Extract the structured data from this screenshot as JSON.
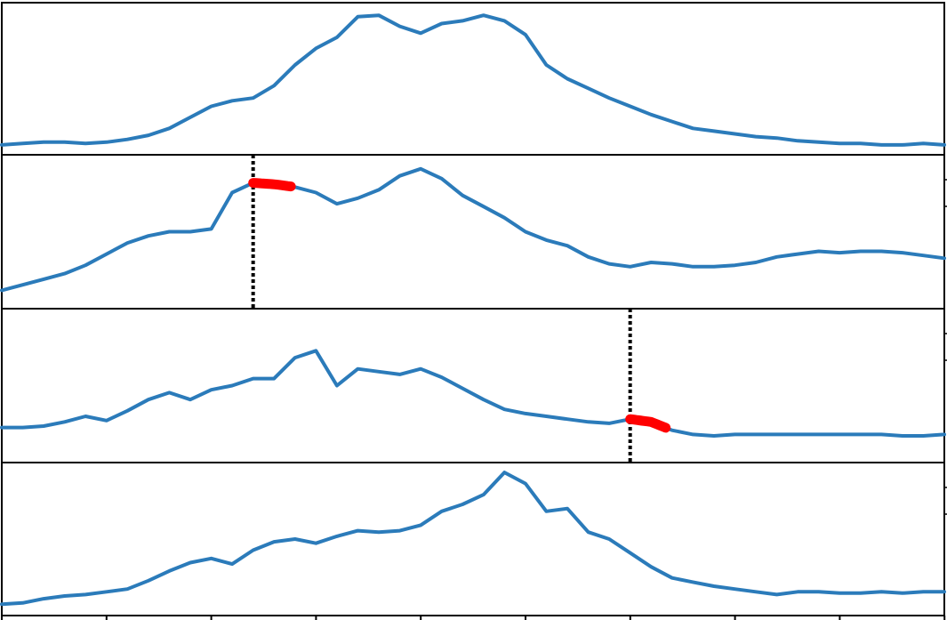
{
  "chart_data": [
    {
      "type": "line",
      "x": [
        0,
        1,
        2,
        3,
        4,
        5,
        6,
        7,
        8,
        9,
        10,
        11,
        12,
        13,
        14,
        15,
        16,
        17,
        18,
        19,
        20,
        21,
        22,
        23,
        24,
        25,
        26,
        27,
        28,
        29,
        30,
        31,
        32,
        33,
        34,
        35,
        36,
        37,
        38,
        39,
        40,
        41,
        42,
        43,
        44,
        45
      ],
      "series": [
        {
          "values": [
            0.02,
            0.03,
            0.04,
            0.04,
            0.03,
            0.04,
            0.06,
            0.09,
            0.14,
            0.22,
            0.3,
            0.34,
            0.36,
            0.45,
            0.6,
            0.72,
            0.8,
            0.95,
            0.96,
            0.88,
            0.83,
            0.9,
            0.92,
            0.96,
            0.92,
            0.82,
            0.6,
            0.5,
            0.43,
            0.36,
            0.3,
            0.24,
            0.19,
            0.14,
            0.12,
            0.1,
            0.08,
            0.07,
            0.05,
            0.04,
            0.03,
            0.03,
            0.02,
            0.02,
            0.03,
            0.02
          ],
          "color": "#2b7bba"
        }
      ],
      "ylim": [
        0,
        1
      ],
      "grid": false
    },
    {
      "type": "line",
      "x": [
        0,
        1,
        2,
        3,
        4,
        5,
        6,
        7,
        8,
        9,
        10,
        11,
        12,
        13,
        14,
        15,
        16,
        17,
        18,
        19,
        20,
        21,
        22,
        23,
        24,
        25,
        26,
        27,
        28,
        29,
        30,
        31,
        32,
        33,
        34,
        35,
        36,
        37,
        38,
        39,
        40,
        41,
        42,
        43,
        44,
        45
      ],
      "series": [
        {
          "values": [
            0.08,
            0.12,
            0.16,
            0.2,
            0.26,
            0.34,
            0.42,
            0.47,
            0.5,
            0.5,
            0.52,
            0.78,
            0.85,
            0.84,
            0.82,
            0.78,
            0.7,
            0.74,
            0.8,
            0.9,
            0.95,
            0.88,
            0.76,
            0.68,
            0.6,
            0.5,
            0.44,
            0.4,
            0.32,
            0.27,
            0.25,
            0.28,
            0.27,
            0.25,
            0.25,
            0.26,
            0.28,
            0.32,
            0.34,
            0.36,
            0.35,
            0.36,
            0.36,
            0.35,
            0.33,
            0.31
          ],
          "color": "#2b7bba"
        }
      ],
      "highlight": {
        "from_x": 12,
        "to_x": 13.8,
        "color": "#ff0000"
      },
      "marker_x": 12,
      "ylim": [
        0,
        1
      ],
      "grid": false
    },
    {
      "type": "line",
      "x": [
        0,
        1,
        2,
        3,
        4,
        5,
        6,
        7,
        8,
        9,
        10,
        11,
        12,
        13,
        14,
        15,
        16,
        17,
        18,
        19,
        20,
        21,
        22,
        23,
        24,
        25,
        26,
        27,
        28,
        29,
        30,
        31,
        32,
        33,
        34,
        35,
        36,
        37,
        38,
        39,
        40,
        41,
        42,
        43,
        44,
        45
      ],
      "series": [
        {
          "values": [
            0.2,
            0.2,
            0.21,
            0.24,
            0.28,
            0.25,
            0.32,
            0.4,
            0.45,
            0.4,
            0.47,
            0.5,
            0.55,
            0.55,
            0.7,
            0.75,
            0.5,
            0.62,
            0.6,
            0.58,
            0.62,
            0.56,
            0.48,
            0.4,
            0.33,
            0.3,
            0.28,
            0.26,
            0.24,
            0.23,
            0.26,
            0.24,
            0.18,
            0.15,
            0.14,
            0.15,
            0.15,
            0.15,
            0.15,
            0.15,
            0.15,
            0.15,
            0.15,
            0.14,
            0.14,
            0.15
          ],
          "color": "#2b7bba"
        }
      ],
      "highlight": {
        "from_x": 30,
        "to_x": 31.7,
        "color": "#ff0000"
      },
      "marker_x": 30,
      "ylim": [
        0,
        1
      ],
      "grid": false
    },
    {
      "type": "line",
      "x": [
        0,
        1,
        2,
        3,
        4,
        5,
        6,
        7,
        8,
        9,
        10,
        11,
        12,
        13,
        14,
        15,
        16,
        17,
        18,
        19,
        20,
        21,
        22,
        23,
        24,
        25,
        26,
        27,
        28,
        29,
        30,
        31,
        32,
        33,
        34,
        35,
        36,
        37,
        38,
        39,
        40,
        41,
        42,
        43,
        44,
        45
      ],
      "series": [
        {
          "values": [
            0.03,
            0.04,
            0.07,
            0.09,
            0.1,
            0.12,
            0.14,
            0.2,
            0.27,
            0.33,
            0.36,
            0.32,
            0.42,
            0.48,
            0.5,
            0.47,
            0.52,
            0.56,
            0.55,
            0.56,
            0.6,
            0.7,
            0.75,
            0.82,
            0.98,
            0.9,
            0.7,
            0.72,
            0.55,
            0.5,
            0.4,
            0.3,
            0.22,
            0.19,
            0.16,
            0.14,
            0.12,
            0.1,
            0.12,
            0.12,
            0.11,
            0.11,
            0.12,
            0.11,
            0.12,
            0.12
          ],
          "color": "#2b7bba"
        }
      ],
      "ylim": [
        0,
        1
      ],
      "grid": false
    }
  ]
}
